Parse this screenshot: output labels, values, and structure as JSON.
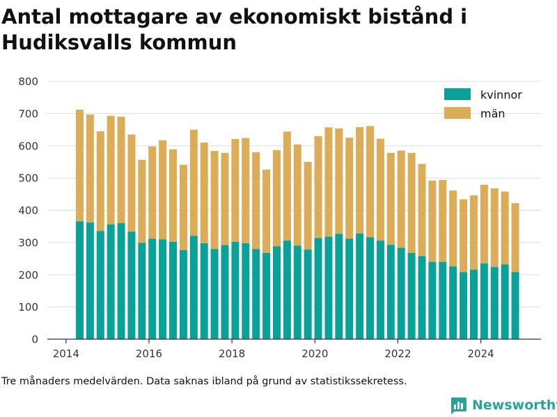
{
  "title": "Antal mottagare av ekonomiskt bistånd i Hudiksvalls kommun",
  "footnote": "Tre månaders medelvärden. Data saknas ibland på grund av statistikssekretess.",
  "brand": {
    "name": "Newsworthy",
    "icon": "bar-chart-icon"
  },
  "colors": {
    "kvinnor": "#0aa198",
    "man": "#dbad58",
    "grid": "#dddddd",
    "axis": "#333333"
  },
  "chart_data": {
    "type": "bar",
    "stacked": true,
    "title": "Antal mottagare av ekonomiskt bistånd i Hudiksvalls kommun",
    "xlabel": "",
    "ylabel": "",
    "ylim": [
      0,
      800
    ],
    "yticks": [
      0,
      100,
      200,
      300,
      400,
      500,
      600,
      700,
      800
    ],
    "xlim": [
      2013.55,
      2025.45
    ],
    "xticks": [
      2014,
      2016,
      2018,
      2020,
      2022,
      2024
    ],
    "grid": true,
    "legend_position": "top-right",
    "x": [
      2014.33,
      2014.58,
      2014.83,
      2015.08,
      2015.33,
      2015.58,
      2015.83,
      2016.08,
      2016.33,
      2016.58,
      2016.83,
      2017.08,
      2017.33,
      2017.58,
      2017.83,
      2018.08,
      2018.33,
      2018.58,
      2018.83,
      2019.08,
      2019.33,
      2019.58,
      2019.83,
      2020.08,
      2020.33,
      2020.58,
      2020.83,
      2021.08,
      2021.33,
      2021.58,
      2021.83,
      2022.08,
      2022.33,
      2022.58,
      2022.83,
      2023.08,
      2023.33,
      2023.58,
      2023.83,
      2024.08,
      2024.33,
      2024.58,
      2024.83
    ],
    "series": [
      {
        "name": "kvinnor",
        "values": [
          366,
          362,
          336,
          356,
          360,
          334,
          299,
          312,
          310,
          302,
          276,
          321,
          298,
          280,
          292,
          302,
          298,
          280,
          268,
          288,
          306,
          290,
          278,
          314,
          318,
          327,
          312,
          328,
          316,
          306,
          293,
          284,
          268,
          258,
          240,
          240,
          226,
          208,
          216,
          235,
          224,
          232,
          208
        ]
      },
      {
        "name": "män",
        "values": [
          346,
          335,
          309,
          337,
          330,
          301,
          257,
          286,
          307,
          287,
          265,
          329,
          312,
          304,
          286,
          319,
          326,
          300,
          258,
          299,
          338,
          314,
          272,
          316,
          339,
          327,
          313,
          330,
          345,
          316,
          285,
          301,
          310,
          286,
          252,
          254,
          235,
          226,
          230,
          244,
          244,
          226,
          214
        ]
      }
    ]
  }
}
